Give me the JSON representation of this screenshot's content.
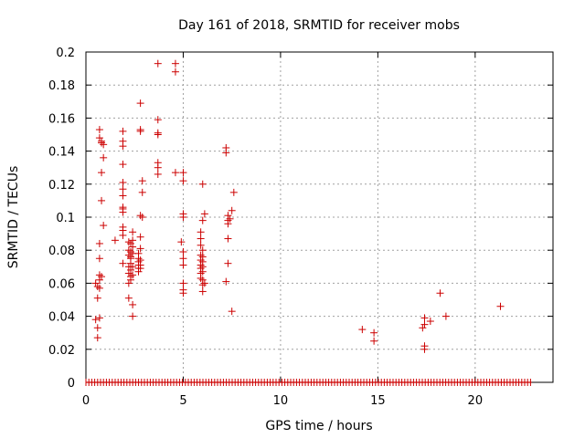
{
  "chart_data": {
    "type": "scatter",
    "title": "Day 161 of 2018, SRMTID for receiver mobs",
    "xlabel": "GPS time / hours",
    "ylabel": "SRMTID / TECUs",
    "xlim": [
      0,
      24
    ],
    "ylim": [
      0,
      0.2
    ],
    "x_ticks": [
      0,
      5,
      10,
      15,
      20
    ],
    "y_ticks": [
      0,
      0.02,
      0.04,
      0.06,
      0.08,
      0.1,
      0.12,
      0.14,
      0.16,
      0.18,
      0.2
    ],
    "x_tick_labels": [
      "0",
      "5",
      "10",
      "15",
      "20"
    ],
    "y_tick_labels": [
      "0",
      "0.02",
      "0.04",
      "0.06",
      "0.08",
      "0.1",
      "0.12",
      "0.14",
      "0.16",
      "0.18",
      "0.2"
    ],
    "grid": true,
    "marker": "+",
    "color": "#cc0000",
    "baseline_zero_range": [
      0,
      22.9
    ],
    "series": [
      {
        "name": "SRMTID",
        "points": [
          [
            0.5,
            0.06
          ],
          [
            0.5,
            0.038
          ],
          [
            0.6,
            0.033
          ],
          [
            0.6,
            0.051
          ],
          [
            0.6,
            0.058
          ],
          [
            0.6,
            0.027
          ],
          [
            0.7,
            0.039
          ],
          [
            0.7,
            0.075
          ],
          [
            0.7,
            0.065
          ],
          [
            0.7,
            0.062
          ],
          [
            0.7,
            0.057
          ],
          [
            0.7,
            0.084
          ],
          [
            0.7,
            0.148
          ],
          [
            0.7,
            0.153
          ],
          [
            0.8,
            0.146
          ],
          [
            0.8,
            0.145
          ],
          [
            0.8,
            0.11
          ],
          [
            0.8,
            0.127
          ],
          [
            0.8,
            0.064
          ],
          [
            0.9,
            0.144
          ],
          [
            0.9,
            0.136
          ],
          [
            0.9,
            0.095
          ],
          [
            1.5,
            0.086
          ],
          [
            1.9,
            0.152
          ],
          [
            1.9,
            0.146
          ],
          [
            1.9,
            0.143
          ],
          [
            1.9,
            0.132
          ],
          [
            1.9,
            0.121
          ],
          [
            1.9,
            0.117
          ],
          [
            1.9,
            0.113
          ],
          [
            1.9,
            0.106
          ],
          [
            1.9,
            0.105
          ],
          [
            1.9,
            0.103
          ],
          [
            1.9,
            0.094
          ],
          [
            1.9,
            0.092
          ],
          [
            1.9,
            0.089
          ],
          [
            1.9,
            0.072
          ],
          [
            2.2,
            0.085
          ],
          [
            2.2,
            0.08
          ],
          [
            2.2,
            0.077
          ],
          [
            2.2,
            0.07
          ],
          [
            2.2,
            0.066
          ],
          [
            2.2,
            0.06
          ],
          [
            2.2,
            0.051
          ],
          [
            2.3,
            0.084
          ],
          [
            2.3,
            0.079
          ],
          [
            2.3,
            0.076
          ],
          [
            2.3,
            0.075
          ],
          [
            2.3,
            0.072
          ],
          [
            2.3,
            0.068
          ],
          [
            2.3,
            0.064
          ],
          [
            2.3,
            0.062
          ],
          [
            2.4,
            0.091
          ],
          [
            2.4,
            0.086
          ],
          [
            2.4,
            0.082
          ],
          [
            2.4,
            0.078
          ],
          [
            2.4,
            0.07
          ],
          [
            2.4,
            0.065
          ],
          [
            2.4,
            0.047
          ],
          [
            2.4,
            0.04
          ],
          [
            2.7,
            0.078
          ],
          [
            2.7,
            0.075
          ],
          [
            2.7,
            0.073
          ],
          [
            2.7,
            0.071
          ],
          [
            2.7,
            0.069
          ],
          [
            2.7,
            0.067
          ],
          [
            2.8,
            0.169
          ],
          [
            2.8,
            0.153
          ],
          [
            2.8,
            0.152
          ],
          [
            2.8,
            0.101
          ],
          [
            2.8,
            0.088
          ],
          [
            2.8,
            0.081
          ],
          [
            2.8,
            0.074
          ],
          [
            2.8,
            0.071
          ],
          [
            2.8,
            0.069
          ],
          [
            2.9,
            0.122
          ],
          [
            2.9,
            0.115
          ],
          [
            2.9,
            0.1
          ],
          [
            3.7,
            0.193
          ],
          [
            3.7,
            0.159
          ],
          [
            3.7,
            0.151
          ],
          [
            3.7,
            0.15
          ],
          [
            3.7,
            0.133
          ],
          [
            3.7,
            0.13
          ],
          [
            3.7,
            0.126
          ],
          [
            4.6,
            0.193
          ],
          [
            4.6,
            0.188
          ],
          [
            4.6,
            0.127
          ],
          [
            4.9,
            0.085
          ],
          [
            5.0,
            0.127
          ],
          [
            5.0,
            0.122
          ],
          [
            5.0,
            0.102
          ],
          [
            5.0,
            0.1
          ],
          [
            5.0,
            0.079
          ],
          [
            5.0,
            0.075
          ],
          [
            5.0,
            0.071
          ],
          [
            5.0,
            0.06
          ],
          [
            5.0,
            0.056
          ],
          [
            5.0,
            0.054
          ],
          [
            5.9,
            0.091
          ],
          [
            5.9,
            0.087
          ],
          [
            5.9,
            0.083
          ],
          [
            5.9,
            0.077
          ],
          [
            5.9,
            0.074
          ],
          [
            5.9,
            0.071
          ],
          [
            5.9,
            0.069
          ],
          [
            5.9,
            0.066
          ],
          [
            5.9,
            0.063
          ],
          [
            6.0,
            0.12
          ],
          [
            6.0,
            0.098
          ],
          [
            6.0,
            0.08
          ],
          [
            6.0,
            0.076
          ],
          [
            6.0,
            0.073
          ],
          [
            6.0,
            0.07
          ],
          [
            6.0,
            0.067
          ],
          [
            6.0,
            0.062
          ],
          [
            6.0,
            0.059
          ],
          [
            6.0,
            0.055
          ],
          [
            6.1,
            0.102
          ],
          [
            6.1,
            0.06
          ],
          [
            7.2,
            0.142
          ],
          [
            7.2,
            0.139
          ],
          [
            7.2,
            0.061
          ],
          [
            7.3,
            0.101
          ],
          [
            7.3,
            0.098
          ],
          [
            7.3,
            0.096
          ],
          [
            7.3,
            0.087
          ],
          [
            7.3,
            0.072
          ],
          [
            7.4,
            0.099
          ],
          [
            7.5,
            0.104
          ],
          [
            7.5,
            0.043
          ],
          [
            7.6,
            0.115
          ],
          [
            14.2,
            0.032
          ],
          [
            14.8,
            0.03
          ],
          [
            14.8,
            0.025
          ],
          [
            17.3,
            0.033
          ],
          [
            17.4,
            0.039
          ],
          [
            17.4,
            0.035
          ],
          [
            17.4,
            0.022
          ],
          [
            17.4,
            0.02
          ],
          [
            17.7,
            0.037
          ],
          [
            18.2,
            0.054
          ],
          [
            18.5,
            0.04
          ],
          [
            21.3,
            0.046
          ]
        ]
      }
    ]
  }
}
